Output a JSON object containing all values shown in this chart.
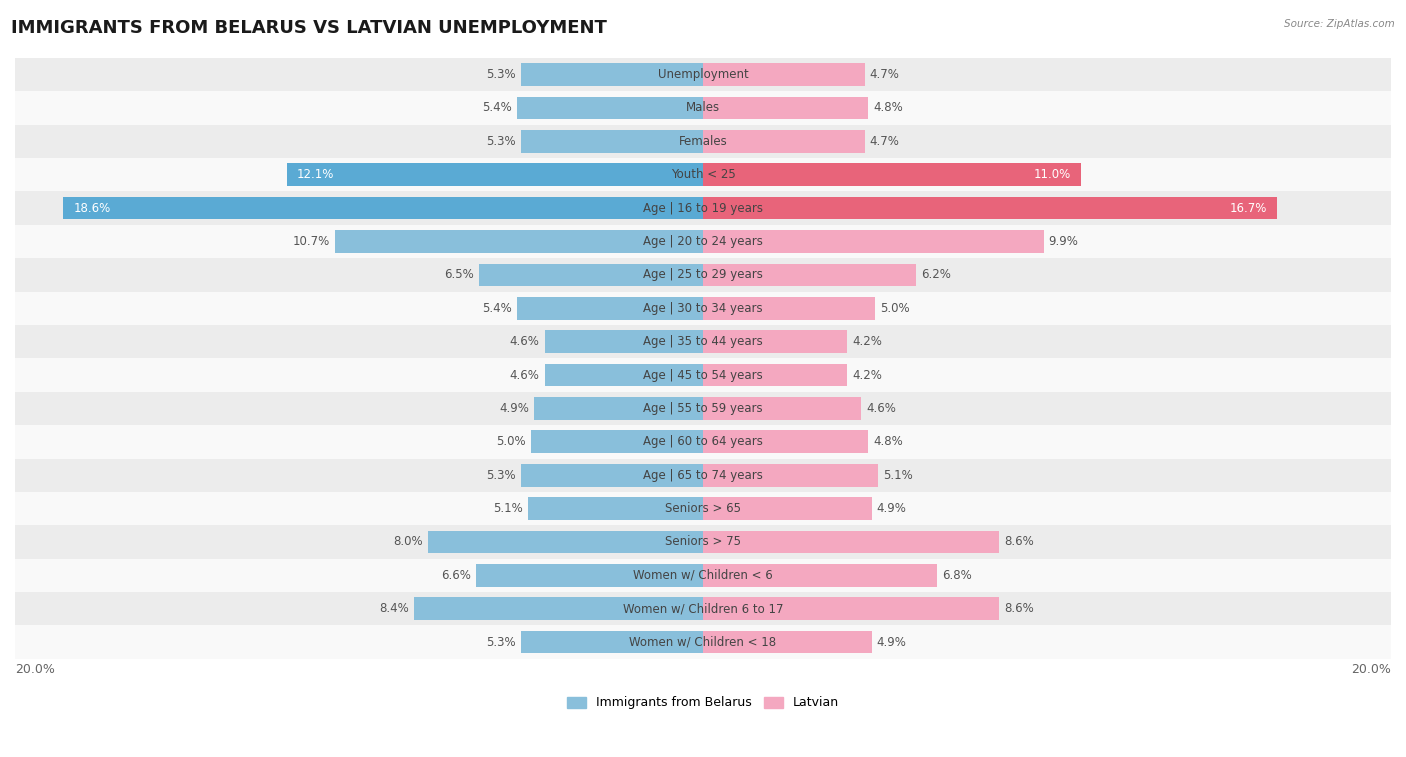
{
  "title": "IMMIGRANTS FROM BELARUS VS LATVIAN UNEMPLOYMENT",
  "source": "Source: ZipAtlas.com",
  "categories": [
    "Unemployment",
    "Males",
    "Females",
    "Youth < 25",
    "Age | 16 to 19 years",
    "Age | 20 to 24 years",
    "Age | 25 to 29 years",
    "Age | 30 to 34 years",
    "Age | 35 to 44 years",
    "Age | 45 to 54 years",
    "Age | 55 to 59 years",
    "Age | 60 to 64 years",
    "Age | 65 to 74 years",
    "Seniors > 65",
    "Seniors > 75",
    "Women w/ Children < 6",
    "Women w/ Children 6 to 17",
    "Women w/ Children < 18"
  ],
  "left_values": [
    5.3,
    5.4,
    5.3,
    12.1,
    18.6,
    10.7,
    6.5,
    5.4,
    4.6,
    4.6,
    4.9,
    5.0,
    5.3,
    5.1,
    8.0,
    6.6,
    8.4,
    5.3
  ],
  "right_values": [
    4.7,
    4.8,
    4.7,
    11.0,
    16.7,
    9.9,
    6.2,
    5.0,
    4.2,
    4.2,
    4.6,
    4.8,
    5.1,
    4.9,
    8.6,
    6.8,
    8.6,
    4.9
  ],
  "left_color": "#89bfdb",
  "right_color": "#f4a8c0",
  "highlight_left_color": "#5aaad4",
  "highlight_right_color": "#e8647a",
  "highlight_rows": [
    3,
    4
  ],
  "row_bg_colors": [
    "#ececec",
    "#f9f9f9"
  ],
  "xlim": 20.0,
  "left_label": "Immigrants from Belarus",
  "right_label": "Latvian",
  "title_fontsize": 13,
  "cat_fontsize": 8.5,
  "value_fontsize": 8.5,
  "axis_label_fontsize": 9
}
